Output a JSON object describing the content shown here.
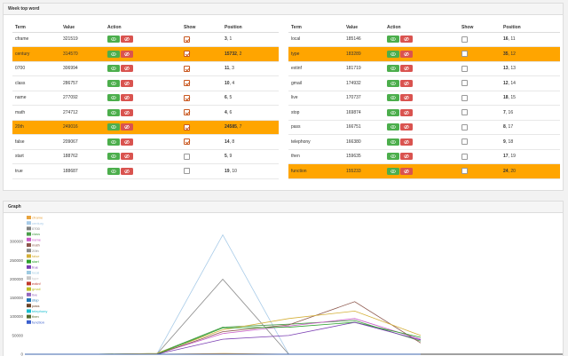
{
  "panel_words": {
    "title": "Week top word"
  },
  "panel_graph": {
    "title": "Graph"
  },
  "columns": {
    "term": "Term",
    "value": "Value",
    "action": "Action",
    "show": "Show",
    "position": "Position"
  },
  "left_rows": [
    {
      "term": "cframe",
      "value": "321519",
      "show": true,
      "pos_bold": "3",
      "pos_rest": ", 1",
      "highlight": false
    },
    {
      "term": "century",
      "value": "314570",
      "show": true,
      "pos_bold": "15732",
      "pos_rest": ", 2",
      "highlight": true
    },
    {
      "term": "0700",
      "value": "306994",
      "show": true,
      "pos_bold": "11",
      "pos_rest": ", 3",
      "highlight": false
    },
    {
      "term": "class",
      "value": "286757",
      "show": true,
      "pos_bold": "10",
      "pos_rest": ", 4",
      "highlight": false
    },
    {
      "term": "name",
      "value": "277092",
      "show": true,
      "pos_bold": "6",
      "pos_rest": ", 5",
      "highlight": false
    },
    {
      "term": "math",
      "value": "274712",
      "show": true,
      "pos_bold": "4",
      "pos_rest": ", 6",
      "highlight": false
    },
    {
      "term": "20th",
      "value": "249016",
      "show": true,
      "pos_bold": "24585",
      "pos_rest": ", 7",
      "highlight": true
    },
    {
      "term": "false",
      "value": "209067",
      "show": true,
      "pos_bold": "14",
      "pos_rest": ", 8",
      "highlight": false
    },
    {
      "term": "start",
      "value": "188762",
      "show": false,
      "pos_bold": "5",
      "pos_rest": ", 9",
      "highlight": false
    },
    {
      "term": "true",
      "value": "188687",
      "show": false,
      "pos_bold": "19",
      "pos_rest": ", 10",
      "highlight": false
    }
  ],
  "right_rows": [
    {
      "term": "local",
      "value": "185146",
      "show": false,
      "pos_bold": "16",
      "pos_rest": ", 11",
      "highlight": false
    },
    {
      "term": "type",
      "value": "183289",
      "show": false,
      "pos_bold": "35",
      "pos_rest": ", 12",
      "highlight": true
    },
    {
      "term": "extinf",
      "value": "181719",
      "show": false,
      "pos_bold": "13",
      "pos_rest": ", 13",
      "highlight": false
    },
    {
      "term": "gmail",
      "value": "174932",
      "show": false,
      "pos_bold": "12",
      "pos_rest": ", 14",
      "highlight": false
    },
    {
      "term": "live",
      "value": "170737",
      "show": false,
      "pos_bold": "18",
      "pos_rest": ", 15",
      "highlight": false
    },
    {
      "term": "stop",
      "value": "169874",
      "show": false,
      "pos_bold": "7",
      "pos_rest": ", 16",
      "highlight": false
    },
    {
      "term": "pass",
      "value": "166751",
      "show": false,
      "pos_bold": "8",
      "pos_rest": ", 17",
      "highlight": false
    },
    {
      "term": "telephony",
      "value": "166380",
      "show": false,
      "pos_bold": "9",
      "pos_rest": ", 18",
      "highlight": false
    },
    {
      "term": "then",
      "value": "159635",
      "show": false,
      "pos_bold": "17",
      "pos_rest": ", 19",
      "highlight": false
    },
    {
      "term": "function",
      "value": "155233",
      "show": false,
      "pos_bold": "24",
      "pos_rest": ", 20",
      "highlight": true
    }
  ],
  "icons": {
    "view": "eye-icon",
    "hide": "eye-slash-icon"
  },
  "colors": {
    "highlight": "#ffa500",
    "view_button": "#4cae4c",
    "hide_button": "#d9534f"
  },
  "chart_data": {
    "type": "line",
    "y_ticks": [
      "300000",
      "250000",
      "200000",
      "150000",
      "100000",
      "50000",
      "0"
    ],
    "ylim": [
      0,
      350000
    ],
    "x_count": 7,
    "legend_position": "top-left",
    "series": [
      {
        "name": "cframe",
        "color": "#e8a33d",
        "values": [
          0,
          0,
          0,
          2000,
          0,
          0,
          0
        ]
      },
      {
        "name": "century",
        "color": "#a8cbe8",
        "values": [
          0,
          0,
          0,
          318000,
          0,
          0,
          0
        ]
      },
      {
        "name": "0700",
        "color": "#7f7f7f",
        "values": [
          0,
          0,
          0,
          0,
          0,
          0,
          0
        ]
      },
      {
        "name": "class",
        "color": "#4a9e4a",
        "values": [
          0,
          0,
          2000,
          72000,
          80000,
          90000,
          35000
        ]
      },
      {
        "name": "name",
        "color": "#c85ac8",
        "values": [
          0,
          0,
          1000,
          55000,
          75000,
          95000,
          40000
        ]
      },
      {
        "name": "math",
        "color": "#8c564b",
        "values": [
          0,
          0,
          0,
          60000,
          78000,
          140000,
          30000
        ]
      },
      {
        "name": "20th",
        "color": "#8a8a8a",
        "values": [
          0,
          0,
          0,
          200000,
          0,
          0,
          0
        ]
      },
      {
        "name": "false",
        "color": "#d4af37",
        "values": [
          0,
          0,
          2000,
          65000,
          95000,
          115000,
          50000
        ]
      },
      {
        "name": "start",
        "color": "#2ca02c",
        "values": [
          0,
          0,
          0,
          70000,
          72000,
          85000,
          45000
        ]
      },
      {
        "name": "true",
        "color": "#7b3fb3",
        "values": [
          0,
          0,
          0,
          40000,
          50000,
          85000,
          38000
        ]
      },
      {
        "name": "local",
        "color": "#9ecae1",
        "values": [
          0,
          0,
          0,
          0,
          0,
          0,
          0
        ]
      },
      {
        "name": "type",
        "color": "#c7c7c7",
        "values": [
          0,
          0,
          0,
          0,
          0,
          0,
          0
        ]
      },
      {
        "name": "extinf",
        "color": "#c0392b",
        "values": [
          0,
          0,
          0,
          0,
          0,
          0,
          0
        ]
      },
      {
        "name": "gmail",
        "color": "#bcbd22",
        "values": [
          0,
          0,
          0,
          0,
          0,
          0,
          0
        ]
      },
      {
        "name": "live",
        "color": "#9467bd",
        "values": [
          0,
          0,
          0,
          0,
          0,
          0,
          0
        ]
      },
      {
        "name": "stop",
        "color": "#1f77b4",
        "values": [
          0,
          0,
          0,
          0,
          0,
          0,
          0
        ]
      },
      {
        "name": "pass",
        "color": "#6b4226",
        "values": [
          0,
          0,
          0,
          0,
          0,
          0,
          0
        ]
      },
      {
        "name": "telephony",
        "color": "#17becf",
        "values": [
          0,
          0,
          0,
          0,
          0,
          0,
          0
        ]
      },
      {
        "name": "then",
        "color": "#556b2f",
        "values": [
          0,
          0,
          0,
          0,
          0,
          0,
          0
        ]
      },
      {
        "name": "function",
        "color": "#3a5fcd",
        "values": [
          0,
          0,
          0,
          0,
          0,
          0,
          0
        ]
      }
    ]
  }
}
